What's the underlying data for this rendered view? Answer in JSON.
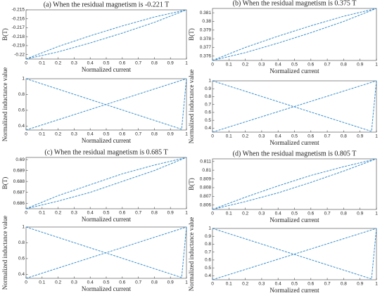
{
  "chart_data": [
    {
      "type": "line",
      "title": "(a) When the residual magnetism is -0.221 T",
      "xlabel": "Normalized current",
      "ylabel": "B(T)",
      "xlim": [
        0,
        1
      ],
      "ylim": [
        -0.2205,
        -0.215
      ],
      "xticks": [
        0,
        0.1,
        0.2,
        0.3,
        0.4,
        0.5,
        0.6,
        0.7,
        0.8,
        0.9,
        1
      ],
      "yticks": [
        -0.22,
        -0.219,
        -0.218,
        -0.217,
        -0.216,
        -0.215
      ],
      "series": [
        {
          "color": "#3b8fcd",
          "x": [
            0,
            0.2,
            0.4,
            0.6,
            0.8,
            1
          ],
          "values": [
            -0.2205,
            -0.2197,
            -0.2187,
            -0.2176,
            -0.2164,
            -0.215
          ]
        },
        {
          "color": "#3b8fcd",
          "x": [
            0,
            0.2,
            0.4,
            0.6,
            0.8,
            1
          ],
          "values": [
            -0.2205,
            -0.2191,
            -0.2179,
            -0.2168,
            -0.2158,
            -0.215
          ]
        }
      ]
    },
    {
      "type": "line",
      "xlabel": "Normalized current",
      "ylabel": "Normalized inductance value",
      "xlim": [
        0,
        1
      ],
      "ylim": [
        0.35,
        1
      ],
      "xticks": [
        0,
        0.1,
        0.2,
        0.3,
        0.4,
        0.5,
        0.6,
        0.7,
        0.8,
        0.9,
        1
      ],
      "yticks": [
        0.4,
        0.6,
        0.8,
        1
      ],
      "series": [
        {
          "color": "#3b8fcd",
          "x": [
            0,
            0.97,
            1
          ],
          "values": [
            1,
            0.36,
            1
          ]
        },
        {
          "color": "#3b8fcd",
          "x": [
            0,
            1
          ],
          "values": [
            0.35,
            1
          ]
        }
      ]
    },
    {
      "type": "line",
      "title": "(b) When the residual magnetism is 0.375 T",
      "xlabel": "Normalized current",
      "ylabel": "B(T)",
      "xlim": [
        0,
        1
      ],
      "ylim": [
        0.3755,
        0.3815
      ],
      "xticks": [
        0,
        0.1,
        0.2,
        0.3,
        0.4,
        0.5,
        0.6,
        0.7,
        0.8,
        0.9,
        1
      ],
      "yticks": [
        0.376,
        0.377,
        0.378,
        0.379,
        0.38,
        0.381
      ],
      "series": [
        {
          "color": "#3b8fcd",
          "x": [
            0,
            0.2,
            0.4,
            0.6,
            0.8,
            1
          ],
          "values": [
            0.3755,
            0.3764,
            0.3775,
            0.3787,
            0.38,
            0.3815
          ]
        },
        {
          "color": "#3b8fcd",
          "x": [
            0,
            0.2,
            0.4,
            0.6,
            0.8,
            1
          ],
          "values": [
            0.3755,
            0.377,
            0.3783,
            0.3795,
            0.3806,
            0.3815
          ]
        }
      ]
    },
    {
      "type": "line",
      "xlabel": "Normalized current",
      "ylabel": "Normalized inductance value",
      "xlim": [
        0,
        1
      ],
      "ylim": [
        0.35,
        1
      ],
      "xticks": [
        0,
        0.1,
        0.2,
        0.3,
        0.4,
        0.5,
        0.6,
        0.7,
        0.8,
        0.9,
        1
      ],
      "yticks": [
        0.4,
        0.5,
        0.6,
        0.7,
        0.8,
        0.9,
        1
      ],
      "series": [
        {
          "color": "#3b8fcd",
          "x": [
            0,
            0.97,
            1
          ],
          "values": [
            1,
            0.36,
            1
          ]
        },
        {
          "color": "#3b8fcd",
          "x": [
            0,
            1
          ],
          "values": [
            0.35,
            1
          ]
        }
      ]
    },
    {
      "type": "line",
      "title": "(c) When the residual magnetism is 0.685 T",
      "xlabel": "Normalized current",
      "ylabel": "B(T)",
      "xlim": [
        0,
        1
      ],
      "ylim": [
        0.6855,
        0.6902
      ],
      "xticks": [
        0,
        0.1,
        0.2,
        0.3,
        0.4,
        0.5,
        0.6,
        0.7,
        0.8,
        0.9,
        1
      ],
      "yticks": [
        0.686,
        0.687,
        0.688,
        0.689,
        0.69
      ],
      "series": [
        {
          "color": "#3b8fcd",
          "x": [
            0,
            0.2,
            0.4,
            0.6,
            0.8,
            1
          ],
          "values": [
            0.6855,
            0.6862,
            0.687,
            0.688,
            0.689,
            0.6902
          ]
        },
        {
          "color": "#3b8fcd",
          "x": [
            0,
            0.2,
            0.4,
            0.6,
            0.8,
            1
          ],
          "values": [
            0.6855,
            0.6867,
            0.6877,
            0.6887,
            0.6895,
            0.6902
          ]
        }
      ]
    },
    {
      "type": "line",
      "xlabel": "Normalized current",
      "ylabel": "Normalized inductance value",
      "xlim": [
        0,
        1
      ],
      "ylim": [
        0.35,
        1
      ],
      "xticks": [
        0,
        0.1,
        0.2,
        0.3,
        0.4,
        0.5,
        0.6,
        0.7,
        0.8,
        0.9,
        1
      ],
      "yticks": [
        0.4,
        0.6,
        0.8,
        1
      ],
      "series": [
        {
          "color": "#3b8fcd",
          "x": [
            0,
            0.97,
            1
          ],
          "values": [
            1,
            0.36,
            1
          ]
        },
        {
          "color": "#3b8fcd",
          "x": [
            0,
            1
          ],
          "values": [
            0.35,
            1
          ]
        }
      ]
    },
    {
      "type": "line",
      "title": "(d) When the residual magnetism is 0.805 T",
      "xlabel": "Normalized current",
      "ylabel": "B(T)",
      "xlim": [
        0,
        1
      ],
      "ylim": [
        0.8055,
        0.8113
      ],
      "xticks": [
        0,
        0.1,
        0.2,
        0.3,
        0.4,
        0.5,
        0.6,
        0.7,
        0.8,
        0.9,
        1
      ],
      "yticks": [
        0.806,
        0.807,
        0.808,
        0.809,
        0.81,
        0.811
      ],
      "series": [
        {
          "color": "#3b8fcd",
          "x": [
            0,
            0.2,
            0.4,
            0.6,
            0.8,
            1
          ],
          "values": [
            0.8055,
            0.8064,
            0.8074,
            0.8086,
            0.8099,
            0.8113
          ]
        },
        {
          "color": "#3b8fcd",
          "x": [
            0,
            0.2,
            0.4,
            0.6,
            0.8,
            1
          ],
          "values": [
            0.8055,
            0.8069,
            0.8082,
            0.8094,
            0.8104,
            0.8113
          ]
        }
      ]
    },
    {
      "type": "line",
      "xlabel": "Normalized current",
      "ylabel": "Normalized inductance value",
      "xlim": [
        0,
        1
      ],
      "ylim": [
        0.35,
        1
      ],
      "xticks": [
        0,
        0.1,
        0.2,
        0.3,
        0.4,
        0.5,
        0.6,
        0.7,
        0.8,
        0.9,
        1
      ],
      "yticks": [
        0.4,
        0.5,
        0.6,
        0.7,
        0.8,
        0.9,
        1
      ],
      "series": [
        {
          "color": "#3b8fcd",
          "x": [
            0,
            0.97,
            1
          ],
          "values": [
            1,
            0.36,
            1
          ]
        },
        {
          "color": "#3b8fcd",
          "x": [
            0,
            1
          ],
          "values": [
            0.35,
            1
          ]
        }
      ]
    }
  ]
}
